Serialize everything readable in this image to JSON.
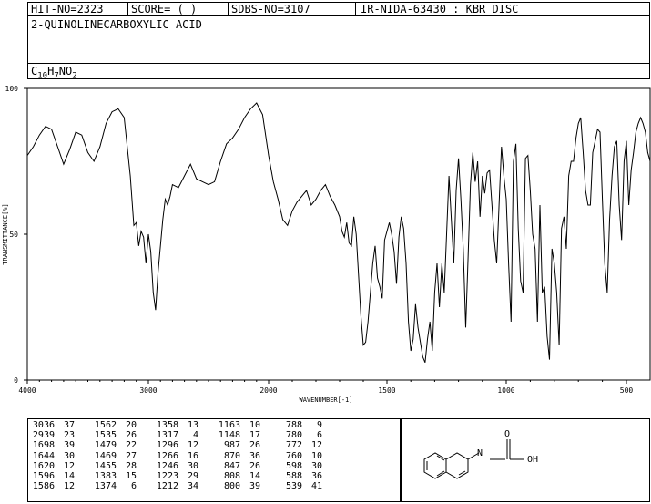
{
  "header": {
    "hit_no": "HIT-NO=2323",
    "score": "SCORE=  (   )",
    "sdbs_no": "SDBS-NO=3107",
    "ir_nida": "IR-NIDA-63430 : KBR DISC",
    "compound_name": "2-QUINOLINECARBOXYLIC ACID",
    "formula_parts": [
      "C",
      "10",
      "H",
      "7",
      "NO",
      "2"
    ]
  },
  "chart_data": {
    "type": "line",
    "xlabel": "WAVENUMBER[-1]",
    "ylabel": "TRANSMITTANCE[%]",
    "xlim": [
      4000,
      400
    ],
    "ylim": [
      0,
      100
    ],
    "x_ticks": [
      "4000",
      "3000",
      "2000",
      "1500",
      "1000",
      "500"
    ],
    "y_ticks": [
      "100",
      "50",
      "0"
    ],
    "grid": false,
    "series": [
      {
        "x": [
          4000,
          3950,
          3900,
          3850,
          3800,
          3750,
          3700,
          3650,
          3600,
          3550,
          3500,
          3450,
          3400,
          3350,
          3300,
          3250,
          3200,
          3150,
          3120,
          3100,
          3080,
          3060,
          3040,
          3020,
          3000,
          2980,
          2960,
          2940,
          2920,
          2900,
          2880,
          2860,
          2840,
          2820,
          2800,
          2750,
          2700,
          2650,
          2600,
          2550,
          2500,
          2450,
          2400,
          2350,
          2300,
          2250,
          2200,
          2150,
          2100,
          2050,
          2000,
          1980,
          1960,
          1940,
          1920,
          1900,
          1880,
          1860,
          1840,
          1820,
          1800,
          1780,
          1760,
          1740,
          1720,
          1700,
          1690,
          1680,
          1670,
          1660,
          1650,
          1640,
          1630,
          1620,
          1610,
          1600,
          1590,
          1580,
          1570,
          1560,
          1550,
          1540,
          1530,
          1520,
          1510,
          1500,
          1490,
          1480,
          1470,
          1460,
          1450,
          1440,
          1430,
          1420,
          1410,
          1400,
          1390,
          1380,
          1370,
          1360,
          1350,
          1340,
          1330,
          1320,
          1310,
          1300,
          1290,
          1280,
          1270,
          1260,
          1250,
          1240,
          1230,
          1220,
          1210,
          1200,
          1190,
          1180,
          1170,
          1160,
          1150,
          1140,
          1130,
          1120,
          1110,
          1100,
          1090,
          1080,
          1070,
          1060,
          1050,
          1040,
          1030,
          1020,
          1010,
          1000,
          990,
          980,
          970,
          960,
          950,
          940,
          930,
          920,
          910,
          900,
          890,
          880,
          870,
          860,
          850,
          840,
          830,
          820,
          810,
          800,
          790,
          780,
          770,
          760,
          750,
          740,
          730,
          720,
          710,
          700,
          690,
          680,
          670,
          660,
          650,
          640,
          630,
          620,
          610,
          600,
          590,
          580,
          570,
          560,
          550,
          540,
          530,
          520,
          510,
          500,
          490,
          480,
          470,
          460,
          450,
          440,
          430,
          420,
          410,
          400
        ],
        "y": [
          77,
          80,
          84,
          87,
          86,
          80,
          74,
          79,
          85,
          84,
          78,
          75,
          80,
          88,
          92,
          93,
          90,
          70,
          53,
          54,
          46,
          51,
          49,
          40,
          50,
          44,
          30,
          24,
          37,
          46,
          55,
          62,
          60,
          63,
          67,
          66,
          70,
          74,
          69,
          68,
          67,
          68,
          75,
          81,
          83,
          86,
          90,
          93,
          95,
          91,
          77,
          68,
          62,
          55,
          53,
          58,
          61,
          63,
          65,
          60,
          62,
          65,
          67,
          63,
          60,
          56,
          51,
          49,
          54,
          47,
          46,
          56,
          50,
          36,
          22,
          12,
          13,
          20,
          30,
          40,
          46,
          35,
          32,
          28,
          48,
          51,
          54,
          50,
          44,
          33,
          49,
          56,
          52,
          40,
          20,
          10,
          14,
          26,
          18,
          13,
          8,
          6,
          14,
          20,
          10,
          30,
          40,
          25,
          40,
          30,
          50,
          70,
          55,
          40,
          65,
          76,
          62,
          45,
          18,
          42,
          67,
          78,
          68,
          75,
          56,
          70,
          64,
          71,
          72,
          60,
          48,
          40,
          60,
          80,
          70,
          62,
          40,
          20,
          75,
          81,
          52,
          34,
          30,
          76,
          77,
          65,
          50,
          45,
          20,
          60,
          30,
          32,
          15,
          7,
          45,
          40,
          30,
          12,
          52,
          56,
          45,
          70,
          75,
          75,
          83,
          88,
          90,
          78,
          65,
          60,
          60,
          78,
          82,
          86,
          85,
          62,
          40,
          30,
          55,
          70,
          80,
          82,
          60,
          48,
          75,
          82,
          60,
          72,
          78,
          85,
          88,
          90,
          88,
          85,
          78,
          75
        ]
      }
    ]
  },
  "peak_table": {
    "columns": [
      {
        "wn": [
          "3036",
          "2939",
          "1698",
          "1644",
          "1620",
          "1596",
          "1586"
        ],
        "t": [
          "37",
          "23",
          "39",
          "30",
          "12",
          "14",
          "12"
        ]
      },
      {
        "wn": [
          "1562",
          "1535",
          "1479",
          "1469",
          "1455",
          "1383",
          "1374"
        ],
        "t": [
          "20",
          "26",
          "22",
          "27",
          "28",
          "15",
          "6"
        ]
      },
      {
        "wn": [
          "1358",
          "1317",
          "1296",
          "1266",
          "1246",
          "1223",
          "1212"
        ],
        "t": [
          "13",
          "4",
          "12",
          "16",
          "30",
          "29",
          "34"
        ]
      },
      {
        "wn": [
          "1163",
          "1148",
          "987",
          "870",
          "847",
          "808",
          "800"
        ],
        "t": [
          "10",
          "17",
          "26",
          "36",
          "26",
          "14",
          "39"
        ]
      },
      {
        "wn": [
          "788",
          "780",
          "772",
          "760",
          "598",
          "588",
          "539"
        ],
        "t": [
          "9",
          "6",
          "12",
          "10",
          "30",
          "36",
          "41"
        ]
      }
    ]
  },
  "structure": {
    "carbonyl_o": "O",
    "hydroxyl": "OH",
    "ring_n": "N"
  }
}
